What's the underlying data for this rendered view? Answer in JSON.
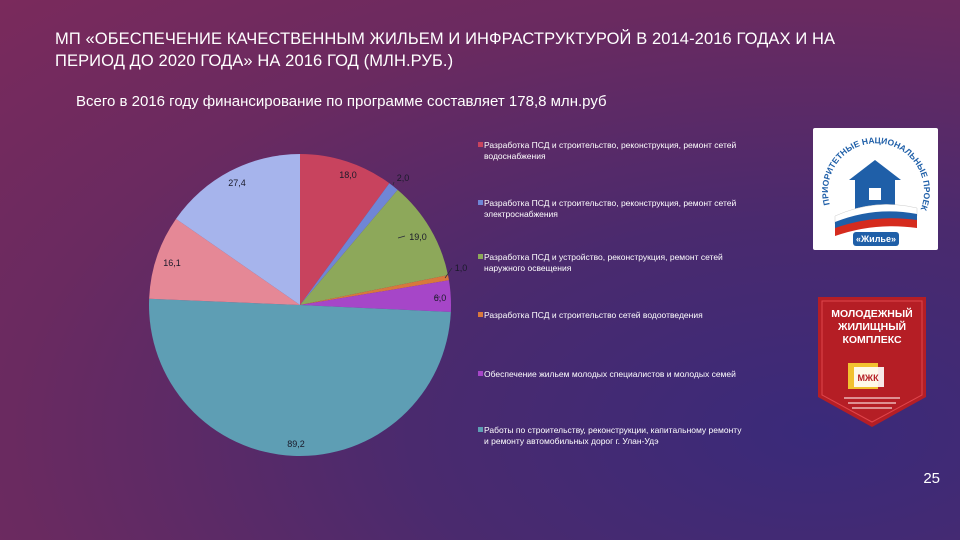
{
  "slide": {
    "title": "МП «ОБЕСПЕЧЕНИЕ КАЧЕСТВЕННЫМ ЖИЛЬЕМ И ИНФРАСТРУКТУРОЙ В 2014-2016 ГОДАХ И НА ПЕРИОД ДО 2020 ГОДА» НА 2016 ГОД (МЛН.РУБ.)",
    "subtitle": "Всего в 2016 году финансирование по программе составляет 178,8 млн.руб",
    "page_number": "25"
  },
  "logos": {
    "national_projects": {
      "text": "ПРИОРИТЕТНЫЕ НАЦИОНАЛЬНЫЕ ПРОЕКТЫ",
      "badge": "«Жилье»"
    },
    "youth_complex": {
      "line1": "МОЛОДЕЖНЫЙ",
      "line2": "ЖИЛИЩНЫЙ",
      "line3": "КОМПЛЕКС",
      "badge": "МЖК"
    }
  },
  "colors": {
    "s1": "#c8435e",
    "s2": "#6f86d6",
    "s3": "#8da85a",
    "s4": "#d8783c",
    "s5": "#a646c8",
    "s6": "#5e9eb4",
    "s7": "#e58896",
    "s8": "#a6b4ec"
  },
  "chart_data": {
    "type": "pie",
    "title": "",
    "series": [
      {
        "label": "18,0",
        "value": 18.0,
        "color_key": "s1",
        "legend": "Разработка ПСД и строительство, реконструкция, ремонт сетей водоснабжения"
      },
      {
        "label": "2,0",
        "value": 2.0,
        "color_key": "s2",
        "legend": "Разработка ПСД и строительство, реконструкция, ремонт сетей электроснабжения"
      },
      {
        "label": "19,0",
        "value": 19.0,
        "color_key": "s3",
        "legend": "Разработка ПСД и устройство, реконструкция, ремонт сетей наружного освещения"
      },
      {
        "label": "1,0",
        "value": 1.0,
        "color_key": "s4",
        "legend": "Разработка ПСД и строительство сетей водоотведения"
      },
      {
        "label": "6,0",
        "value": 6.0,
        "color_key": "s5",
        "legend": "Обеспечение жильем молодых специалистов и молодых семей"
      },
      {
        "label": "89,2",
        "value": 89.2,
        "color_key": "s6",
        "legend": "Работы по строительству, реконструкции, капитальному ремонту и ремонту автомобильных дорог г. Улан-Удэ"
      },
      {
        "label": "16,1",
        "value": 16.1,
        "color_key": "s7",
        "legend": null
      },
      {
        "label": "27,4",
        "value": 27.4,
        "color_key": "s8",
        "legend": null
      }
    ]
  }
}
